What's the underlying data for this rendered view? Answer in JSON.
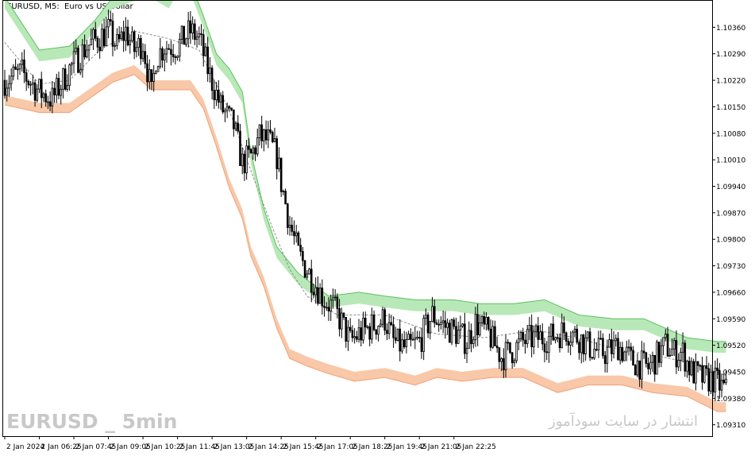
{
  "header": {
    "symbol": "EURUSD",
    "timeframe": "M5",
    "description": "Euro vs US Dollar"
  },
  "watermark": {
    "left": "EURUSD _ 5min",
    "right": "انتشار در سایت سودآموز"
  },
  "colors": {
    "upper_band": "#b8e8b8",
    "upper_line": "#5cc05c",
    "lower_band": "#f8c8a8",
    "lower_line": "#f0a078",
    "midline": "#8c8c8c",
    "candle": "#000000",
    "axis": "#000000"
  },
  "chart_data": {
    "type": "candlestick",
    "title": "EURUSD, M5: Euro vs US Dollar",
    "ylim": [
      1.0928,
      1.1043
    ],
    "y_ticks": [
      "1.10360",
      "1.10290",
      "1.10220",
      "1.10150",
      "1.10080",
      "1.10010",
      "1.09940",
      "1.09870",
      "1.09800",
      "1.09730",
      "1.09660",
      "1.09590",
      "1.09520",
      "1.09450",
      "1.09380",
      "1.09310"
    ],
    "x_ticks": [
      "2 Jan 2024",
      "2 Jan 06:25",
      "2 Jan 07:45",
      "2 Jan 09:05",
      "2 Jan 10:25",
      "2 Jan 11:45",
      "2 Jan 13:05",
      "2 Jan 14:25",
      "2 Jan 15:45",
      "2 Jan 17:05",
      "2 Jan 18:25",
      "2 Jan 19:45",
      "2 Jan 21:05",
      "2 Jan 22:25"
    ],
    "bars_per_tick": 16,
    "close_path": [
      [
        0,
        1.1022
      ],
      [
        8,
        1.1024
      ],
      [
        16,
        1.1019
      ],
      [
        22,
        1.1017
      ],
      [
        30,
        1.1025
      ],
      [
        38,
        1.1031
      ],
      [
        48,
        1.1035
      ],
      [
        52,
        1.1031
      ],
      [
        56,
        1.1035
      ],
      [
        60,
        1.103
      ],
      [
        64,
        1.1032
      ],
      [
        68,
        1.1018
      ],
      [
        70,
        1.1028
      ],
      [
        74,
        1.1031
      ],
      [
        80,
        1.1031
      ],
      [
        86,
        1.1035
      ],
      [
        90,
        1.1033
      ],
      [
        94,
        1.1025
      ],
      [
        100,
        1.1015
      ],
      [
        106,
        1.101
      ],
      [
        110,
        1.1
      ],
      [
        114,
        1.1002
      ],
      [
        118,
        1.1007
      ],
      [
        122,
        1.1006
      ],
      [
        126,
        1.1002
      ],
      [
        128,
        1.0995
      ],
      [
        132,
        1.0984
      ],
      [
        136,
        1.0976
      ],
      [
        140,
        1.0972
      ],
      [
        144,
        1.0968
      ],
      [
        148,
        1.0964
      ],
      [
        152,
        1.0962
      ],
      [
        156,
        1.0958
      ],
      [
        160,
        1.0953
      ],
      [
        164,
        1.0955
      ],
      [
        170,
        1.0957
      ],
      [
        176,
        1.0959
      ],
      [
        180,
        1.0953
      ],
      [
        186,
        1.0951
      ],
      [
        192,
        1.0953
      ],
      [
        198,
        1.096
      ],
      [
        204,
        1.0957
      ],
      [
        210,
        1.0955
      ],
      [
        214,
        1.0953
      ],
      [
        218,
        1.0958
      ],
      [
        224,
        1.0955
      ],
      [
        230,
        1.0949
      ],
      [
        236,
        1.0951
      ],
      [
        240,
        1.0953
      ],
      [
        246,
        1.0954
      ],
      [
        252,
        1.0954
      ],
      [
        260,
        1.0956
      ],
      [
        266,
        1.0954
      ],
      [
        272,
        1.0951
      ],
      [
        278,
        1.095
      ],
      [
        284,
        1.0952
      ],
      [
        290,
        1.0948
      ],
      [
        298,
        1.0946
      ],
      [
        306,
        1.0952
      ],
      [
        310,
        1.095
      ],
      [
        314,
        1.095
      ],
      [
        318,
        1.0945
      ],
      [
        324,
        1.0943
      ],
      [
        328,
        1.0943
      ],
      [
        334,
        1.094
      ]
    ],
    "upper_band_path": [
      [
        0,
        1.1041
      ],
      [
        16,
        1.1027
      ],
      [
        30,
        1.1028
      ],
      [
        42,
        1.1035
      ],
      [
        50,
        1.1041
      ],
      [
        60,
        1.1043
      ],
      [
        70,
        1.1043
      ],
      [
        76,
        1.1041
      ],
      [
        80,
        1.1045
      ],
      [
        86,
        1.1045
      ],
      [
        92,
        1.1036
      ],
      [
        98,
        1.1026
      ],
      [
        104,
        1.1022
      ],
      [
        110,
        1.1016
      ],
      [
        114,
        1.1
      ],
      [
        120,
        1.0985
      ],
      [
        126,
        1.0975
      ],
      [
        136,
        1.0968
      ],
      [
        150,
        1.0962
      ],
      [
        164,
        1.0963
      ],
      [
        176,
        1.0962
      ],
      [
        190,
        1.0961
      ],
      [
        208,
        1.0961
      ],
      [
        220,
        1.096
      ],
      [
        236,
        1.096
      ],
      [
        250,
        1.0961
      ],
      [
        266,
        1.0957
      ],
      [
        282,
        1.0956
      ],
      [
        296,
        1.0956
      ],
      [
        308,
        1.0953
      ],
      [
        316,
        1.0951
      ],
      [
        330,
        1.095
      ]
    ],
    "lower_band_path": [
      [
        0,
        1.1018
      ],
      [
        16,
        1.1016
      ],
      [
        30,
        1.1016
      ],
      [
        40,
        1.102
      ],
      [
        50,
        1.1024
      ],
      [
        60,
        1.1026
      ],
      [
        68,
        1.1022
      ],
      [
        76,
        1.1022
      ],
      [
        82,
        1.1022
      ],
      [
        86,
        1.1022
      ],
      [
        92,
        1.1017
      ],
      [
        98,
        1.1007
      ],
      [
        104,
        1.0996
      ],
      [
        110,
        1.0988
      ],
      [
        114,
        1.0978
      ],
      [
        120,
        1.097
      ],
      [
        126,
        1.0959
      ],
      [
        132,
        1.0951
      ],
      [
        140,
        1.0949
      ],
      [
        150,
        1.0947
      ],
      [
        162,
        1.0945
      ],
      [
        176,
        1.0946
      ],
      [
        190,
        1.0944
      ],
      [
        200,
        1.0946
      ],
      [
        212,
        1.0945
      ],
      [
        226,
        1.0946
      ],
      [
        240,
        1.0946
      ],
      [
        256,
        1.0942
      ],
      [
        270,
        1.0944
      ],
      [
        286,
        1.0944
      ],
      [
        300,
        1.0942
      ],
      [
        316,
        1.0941
      ],
      [
        330,
        1.0937
      ]
    ],
    "midline_path": [
      [
        0,
        1.1032
      ],
      [
        16,
        1.1021
      ],
      [
        30,
        1.1022
      ],
      [
        44,
        1.103
      ],
      [
        60,
        1.1035
      ],
      [
        76,
        1.1033
      ],
      [
        90,
        1.103
      ],
      [
        104,
        1.1014
      ],
      [
        116,
        1.0995
      ],
      [
        124,
        1.0983
      ],
      [
        132,
        1.0972
      ],
      [
        140,
        1.0965
      ],
      [
        154,
        1.096
      ],
      [
        176,
        1.096
      ],
      [
        200,
        1.0955
      ],
      [
        222,
        1.0954
      ],
      [
        246,
        1.0956
      ],
      [
        264,
        1.0954
      ],
      [
        284,
        1.0951
      ],
      [
        304,
        1.0949
      ],
      [
        320,
        1.0947
      ],
      [
        334,
        1.0944
      ]
    ]
  }
}
